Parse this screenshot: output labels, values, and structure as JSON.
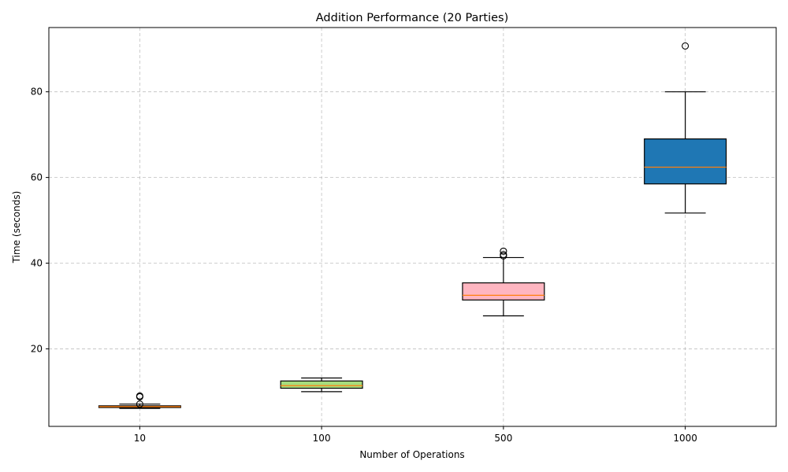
{
  "chart_data": {
    "type": "box",
    "title": "Addition Performance (20 Parties)",
    "xlabel": "Number of Operations",
    "ylabel": "Time (seconds)",
    "categories": [
      "10",
      "100",
      "500",
      "1000"
    ],
    "ylim": [
      1.9,
      95
    ],
    "yticks": [
      20,
      40,
      60,
      80
    ],
    "grid": true,
    "boxes": [
      {
        "category": "10",
        "whisker_low": 6.1,
        "q1": 6.3,
        "median": 6.5,
        "q3": 6.7,
        "whisker_high": 7.1,
        "outliers": [
          7.1,
          8.8,
          9.0
        ],
        "color": "#d2a06e"
      },
      {
        "category": "100",
        "whisker_low": 10.0,
        "q1": 10.8,
        "median": 11.4,
        "q3": 12.5,
        "whisker_high": 13.2,
        "outliers": [],
        "color": "#a6dc7e"
      },
      {
        "category": "500",
        "whisker_low": 27.7,
        "q1": 31.4,
        "median": 32.5,
        "q3": 35.4,
        "whisker_high": 41.3,
        "outliers": [
          41.7,
          42.0,
          42.8
        ],
        "color": "#ffb6c1"
      },
      {
        "category": "1000",
        "whisker_low": 51.7,
        "q1": 58.5,
        "median": 62.4,
        "q3": 69.0,
        "whisker_high": 80.0,
        "outliers": [
          90.7
        ],
        "color": "#1f77b4"
      }
    ],
    "median_color": "#ff7f0e"
  }
}
